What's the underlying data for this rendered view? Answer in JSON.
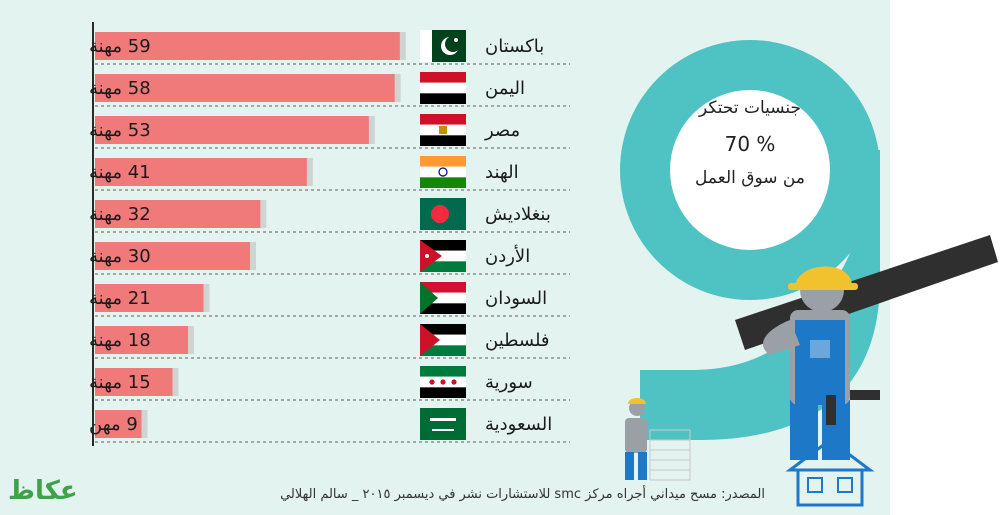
{
  "chart_data": {
    "type": "bar",
    "orientation": "horizontal",
    "categories": [
      "باكستان",
      "اليمن",
      "مصر",
      "الهند",
      "بنغلاديش",
      "الأردن",
      "السودان",
      "فلسطين",
      "سورية",
      "السعودية"
    ],
    "values": [
      59,
      58,
      53,
      41,
      32,
      30,
      21,
      18,
      15,
      9
    ],
    "value_labels": [
      "59 مهنة",
      "58 مهنة",
      "53 مهنة",
      "41 مهنة",
      "32 مهنة",
      "30 مهنة",
      "21 مهنة",
      "18 مهنة",
      "15 مهنة",
      "9 مهن"
    ],
    "bar_color": "#f07a7a",
    "xlim": [
      0,
      60
    ]
  },
  "headline": {
    "big_digit": "9",
    "line1": "جنسيات تحتكر",
    "line2": "70 %",
    "line3": "من سوق العمل"
  },
  "footer": {
    "source": "المصدر: مسح ميداني أجراه مركز smc للاستشارات نشر في ديسمبر ٢٠١٥ _ سالم الهلالي",
    "logo": "عكاظ"
  },
  "colors": {
    "panel": "#e3f3ef",
    "teal": "#4fc3c3",
    "bar": "#f07a7a"
  }
}
